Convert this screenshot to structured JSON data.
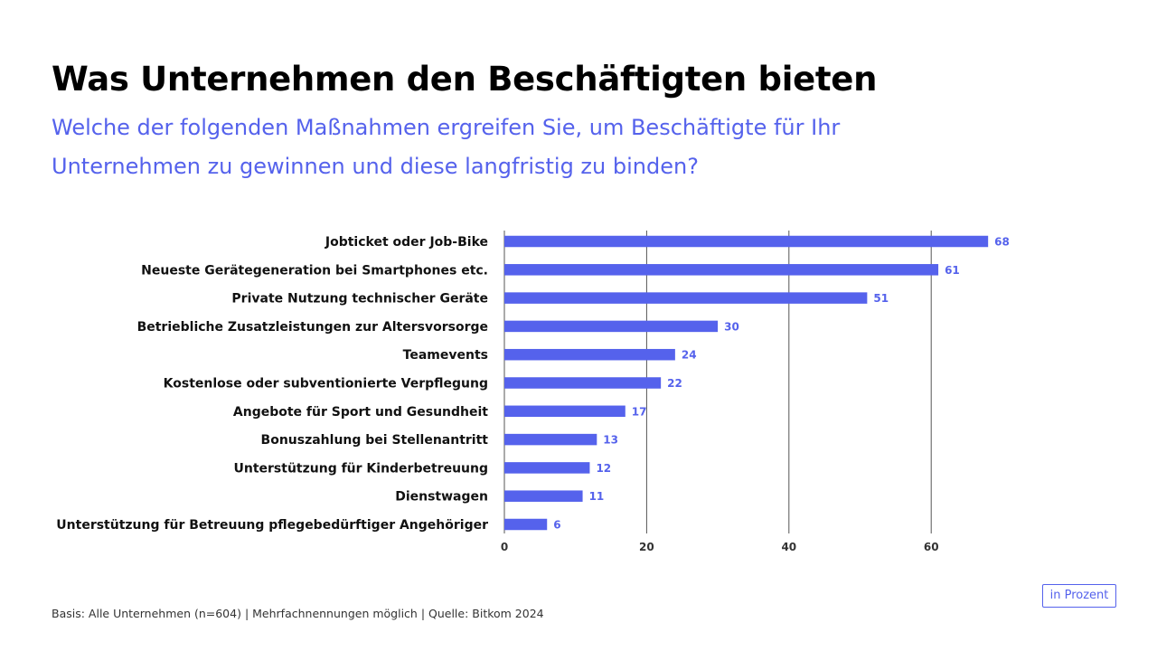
{
  "header": {
    "title": "Was Unternehmen den Beschäftigten bieten",
    "subtitle_line1": "Welche der folgenden Maßnahmen ergreifen Sie, um Beschäftigte für Ihr",
    "subtitle_line2": "Unternehmen zu gewinnen und diese langfristig zu binden?"
  },
  "colors": {
    "accent": "#5562EC",
    "title": "#000000",
    "gridline": "#555555"
  },
  "chart_data": {
    "type": "bar",
    "orientation": "horizontal",
    "categories": [
      "Jobticket oder Job-Bike",
      "Neueste Gerätegeneration bei Smartphones etc.",
      "Private Nutzung technischer Geräte",
      "Betriebliche Zusatzleistungen zur Altersvorsorge",
      "Teamevents",
      "Kostenlose oder subventionierte Verpflegung",
      "Angebote für Sport und Gesundheit",
      "Bonuszahlung bei Stellenantritt",
      "Unterstützung für Kinderbetreuung",
      "Dienstwagen",
      "Unterstützung für Betreuung pflegebedürftiger Angehöriger"
    ],
    "values": [
      68,
      61,
      51,
      30,
      24,
      22,
      17,
      13,
      12,
      11,
      6
    ],
    "xticks": [
      0,
      20,
      40,
      60
    ],
    "xlim": [
      0,
      72
    ],
    "grid": true,
    "xlabel": "",
    "ylabel": ""
  },
  "footer": {
    "source": "Basis: Alle Unternehmen (n=604) | Mehrfachnennungen möglich | Quelle: Bitkom 2024",
    "unit": "in Prozent"
  }
}
